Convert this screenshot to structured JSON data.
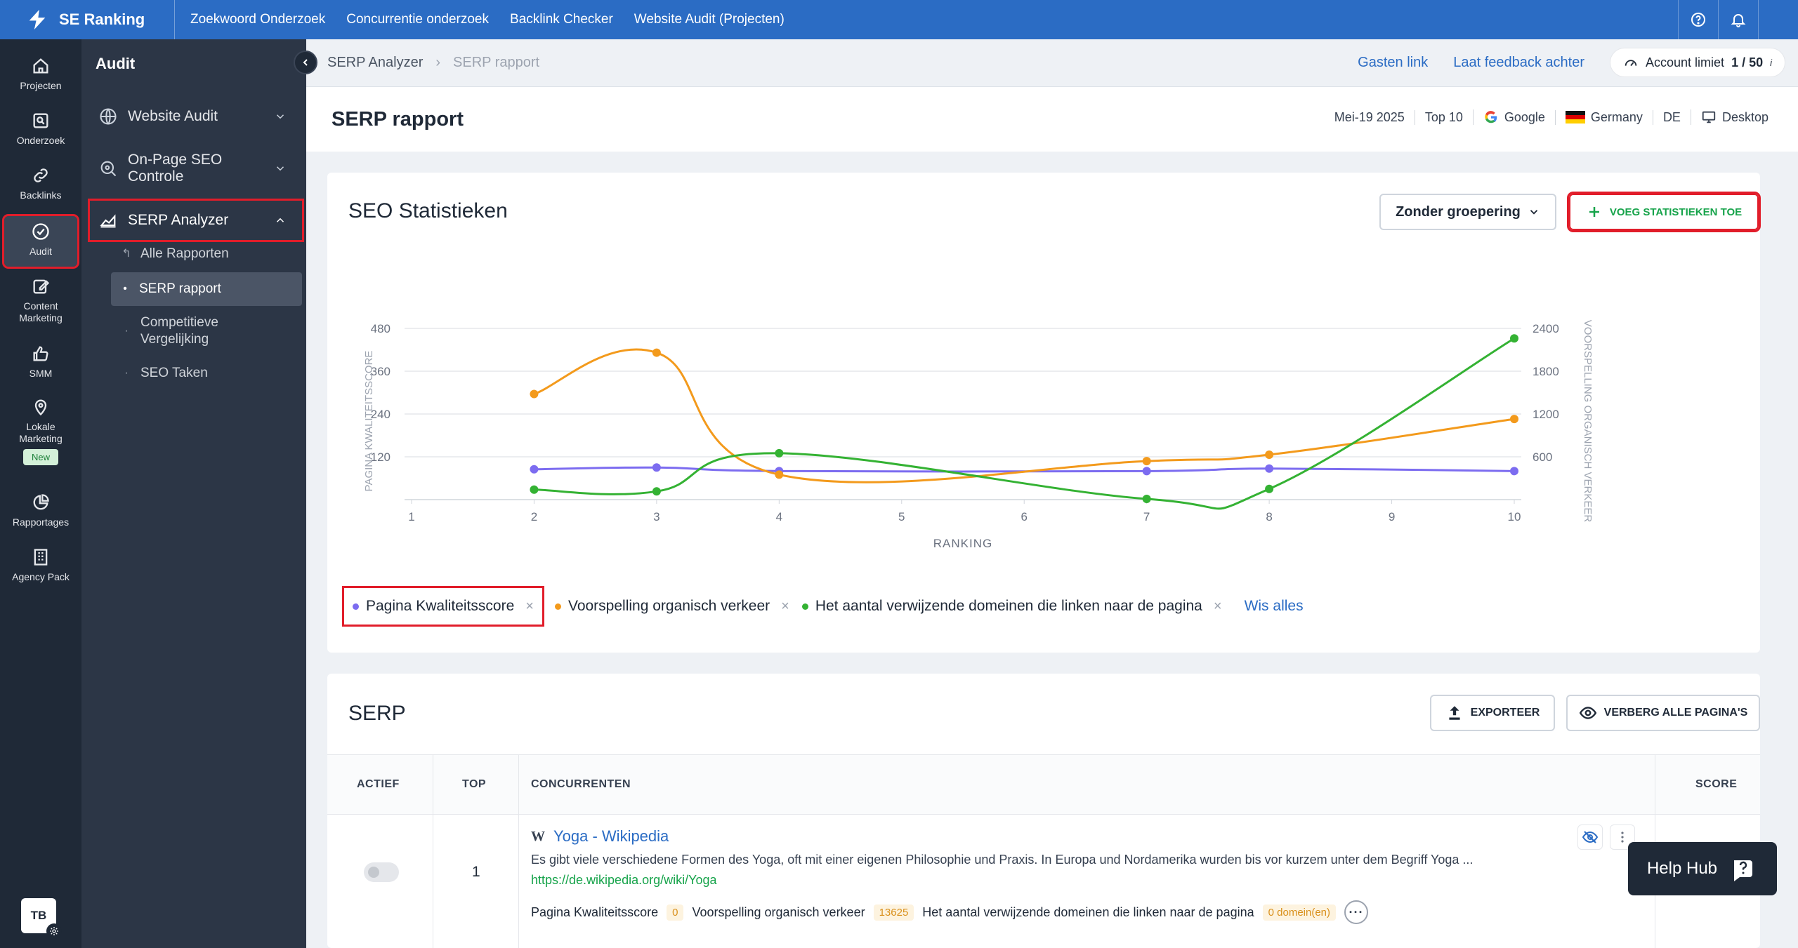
{
  "app": {
    "brand": "SE Ranking",
    "top_nav": [
      "Zoekwoord Onderzoek",
      "Concurrentie onderzoek",
      "Backlink Checker",
      "Website Audit (Projecten)"
    ]
  },
  "rail": {
    "items": [
      {
        "label": "Projecten",
        "icon": "home-icon"
      },
      {
        "label": "Onderzoek",
        "icon": "research-icon"
      },
      {
        "label": "Backlinks",
        "icon": "link-icon"
      },
      {
        "label": "Audit",
        "icon": "check-circle-icon"
      },
      {
        "label": "Content Marketing",
        "icon": "edit-icon"
      },
      {
        "label": "SMM",
        "icon": "thumbs-up-icon"
      },
      {
        "label": "Lokale Marketing",
        "icon": "map-pin-icon",
        "badge": "New"
      },
      {
        "label": "Rapportages",
        "icon": "pie-chart-icon"
      },
      {
        "label": "Agency Pack",
        "icon": "building-icon"
      }
    ],
    "avatar": "TB"
  },
  "sidebar": {
    "title": "Audit",
    "items": [
      {
        "label": "Website Audit"
      },
      {
        "label": "On-Page SEO Controle"
      },
      {
        "label": "SERP Analyzer"
      }
    ],
    "subitems": [
      "Alle Rapporten",
      "SERP rapport",
      "Competitieve Vergelijking",
      "SEO Taken"
    ]
  },
  "breadcrumb": {
    "parent": "SERP Analyzer",
    "current": "SERP rapport",
    "guest_link": "Gasten link",
    "feedback": "Laat feedback achter",
    "limit_label": "Account limiet",
    "limit_value": "1 / 50",
    "limit_info": "i"
  },
  "page": {
    "title": "SERP rapport",
    "date": "Mei-19 2025",
    "top": "Top 10",
    "engine": "Google",
    "country": "Germany",
    "lang": "DE",
    "device": "Desktop"
  },
  "stats": {
    "title": "SEO Statistieken",
    "grouping": "Zonder groepering",
    "add_button": "VOEG STATISTIEKEN TOE",
    "clear_all": "Wis alles"
  },
  "chart_data": {
    "type": "line",
    "xlabel": "RANKING",
    "ylabel_left": "PAGINA KWALITEITSSCORE",
    "ylabel_right": "VOORSPELLING ORGANISCH VERKEER",
    "x_ticks": [
      1,
      2,
      3,
      4,
      5,
      6,
      7,
      8,
      9,
      10
    ],
    "y_left_ticks": [
      120,
      240,
      360,
      480
    ],
    "y_right_ticks": [
      600,
      1200,
      1800,
      2400
    ],
    "ylim_left": [
      0,
      480
    ],
    "ylim_right": [
      0,
      2400
    ],
    "colors": {
      "purple": "#7c6cf0",
      "orange": "#f39a1c",
      "green": "#34b233"
    },
    "series": [
      {
        "name": "Pagina Kwaliteitsscore",
        "axis": "left",
        "color": "#7c6cf0",
        "x": [
          2,
          3,
          4,
          7,
          8,
          10
        ],
        "values": [
          85,
          90,
          80,
          80,
          87,
          80
        ]
      },
      {
        "name": "Voorspelling organisch verkeer",
        "axis": "right",
        "color": "#f39a1c",
        "x": [
          2,
          3,
          4,
          7,
          8,
          10
        ],
        "values": [
          1480,
          2060,
          350,
          540,
          630,
          1130
        ]
      },
      {
        "name": "Het aantal verwijzende domeinen die linken naar de pagina",
        "axis": "left",
        "color": "#34b233",
        "x": [
          2,
          3,
          4,
          7,
          8,
          10
        ],
        "values": [
          28,
          23,
          130,
          2,
          30,
          452
        ]
      }
    ]
  },
  "serp": {
    "title": "SERP",
    "export": "EXPORTEER",
    "hide_all": "VERBERG ALLE PAGINA'S",
    "columns": [
      "ACTIEF",
      "TOP",
      "CONCURRENTEN",
      "SCORE"
    ],
    "rows": [
      {
        "rank": "1",
        "site_icon": "W",
        "title": "Yoga - Wikipedia",
        "desc": "Es gibt viele verschiedene Formen des Yoga, oft mit einer eigenen Philosophie und Praxis. In Europa und Nordamerika wurden bis vor kurzem unter dem Begriff Yoga ...",
        "url": "https://de.wikipedia.org/wiki/Yoga",
        "m1_label": "Pagina Kwaliteitsscore",
        "m1_value": "0",
        "m2_label": "Voorspelling organisch verkeer",
        "m2_value": "13625",
        "m3_label": "Het aantal verwijzende domeinen die linken naar de pagina",
        "m3_value": "0 domein(en)"
      }
    ]
  },
  "helphub": {
    "label": "Help Hub"
  }
}
